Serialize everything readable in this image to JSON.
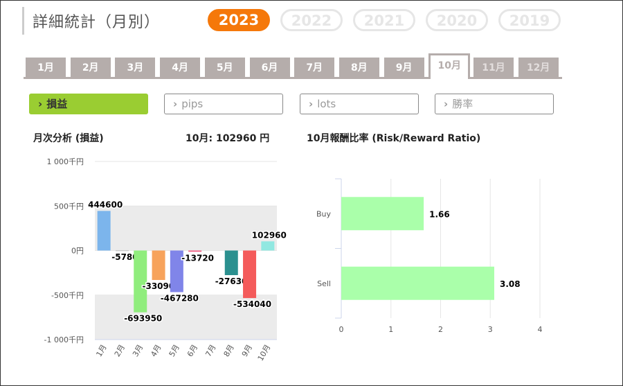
{
  "header": {
    "title": "詳細統計（月別）"
  },
  "years": [
    {
      "label": "2023",
      "active": true
    },
    {
      "label": "2022",
      "active": false
    },
    {
      "label": "2021",
      "active": false
    },
    {
      "label": "2020",
      "active": false
    },
    {
      "label": "2019",
      "active": false
    }
  ],
  "months": [
    {
      "label": "1月",
      "state": "normal"
    },
    {
      "label": "2月",
      "state": "normal"
    },
    {
      "label": "3月",
      "state": "normal"
    },
    {
      "label": "4月",
      "state": "normal"
    },
    {
      "label": "5月",
      "state": "normal"
    },
    {
      "label": "6月",
      "state": "normal"
    },
    {
      "label": "7月",
      "state": "normal"
    },
    {
      "label": "8月",
      "state": "normal"
    },
    {
      "label": "9月",
      "state": "normal"
    },
    {
      "label": "10月",
      "state": "active"
    },
    {
      "label": "11月",
      "state": "disabled"
    },
    {
      "label": "12月",
      "state": "disabled"
    }
  ],
  "metrics": [
    {
      "label": "損益",
      "active": true
    },
    {
      "label": "pips",
      "active": false
    },
    {
      "label": "lots",
      "active": false
    },
    {
      "label": "勝率",
      "active": false
    }
  ],
  "monthly_heading": "月次分析 (損益)",
  "monthly_total": "10月:  102960 円",
  "rr_heading": "10月報酬比率 (Risk/Reward Ratio)",
  "chart_data": [
    {
      "type": "bar",
      "categories": [
        "1月",
        "2月",
        "3月",
        "4月",
        "5月",
        "6月",
        "7月",
        "8月",
        "9月",
        "10月"
      ],
      "values": [
        444600,
        -5780,
        -693950,
        -330900,
        -467280,
        -13720,
        0,
        -276300,
        -534040,
        102960
      ],
      "data_labels": [
        "444600",
        "-5780",
        "-693950",
        "-330900",
        "-467280",
        "-13720",
        "",
        "-276300",
        "-534040",
        "102960"
      ],
      "colors": [
        "#7cb5ec",
        "#aaaaaa",
        "#90ed7d",
        "#f7a35c",
        "#8085e9",
        "#f15c80",
        "#e4d354",
        "#2b908f",
        "#f45b5b",
        "#91e8e1"
      ],
      "yticks": [
        {
          "value": 1000000,
          "label": "1 000千円"
        },
        {
          "value": 500000,
          "label": "500千円"
        },
        {
          "value": 0,
          "label": "0円"
        },
        {
          "value": -500000,
          "label": "-500千円"
        },
        {
          "value": -1000000,
          "label": "-1 000千円"
        }
      ],
      "ylim": [
        -1000000,
        1000000
      ]
    },
    {
      "type": "bar",
      "orientation": "horizontal",
      "categories": [
        "Buy",
        "Sell"
      ],
      "values": [
        1.66,
        3.08
      ],
      "data_labels": [
        "1.66",
        "3.08"
      ],
      "color": "#aaffaa",
      "xticks": [
        "0",
        "1",
        "2",
        "3",
        "4"
      ],
      "xlim": [
        0,
        4
      ]
    }
  ]
}
